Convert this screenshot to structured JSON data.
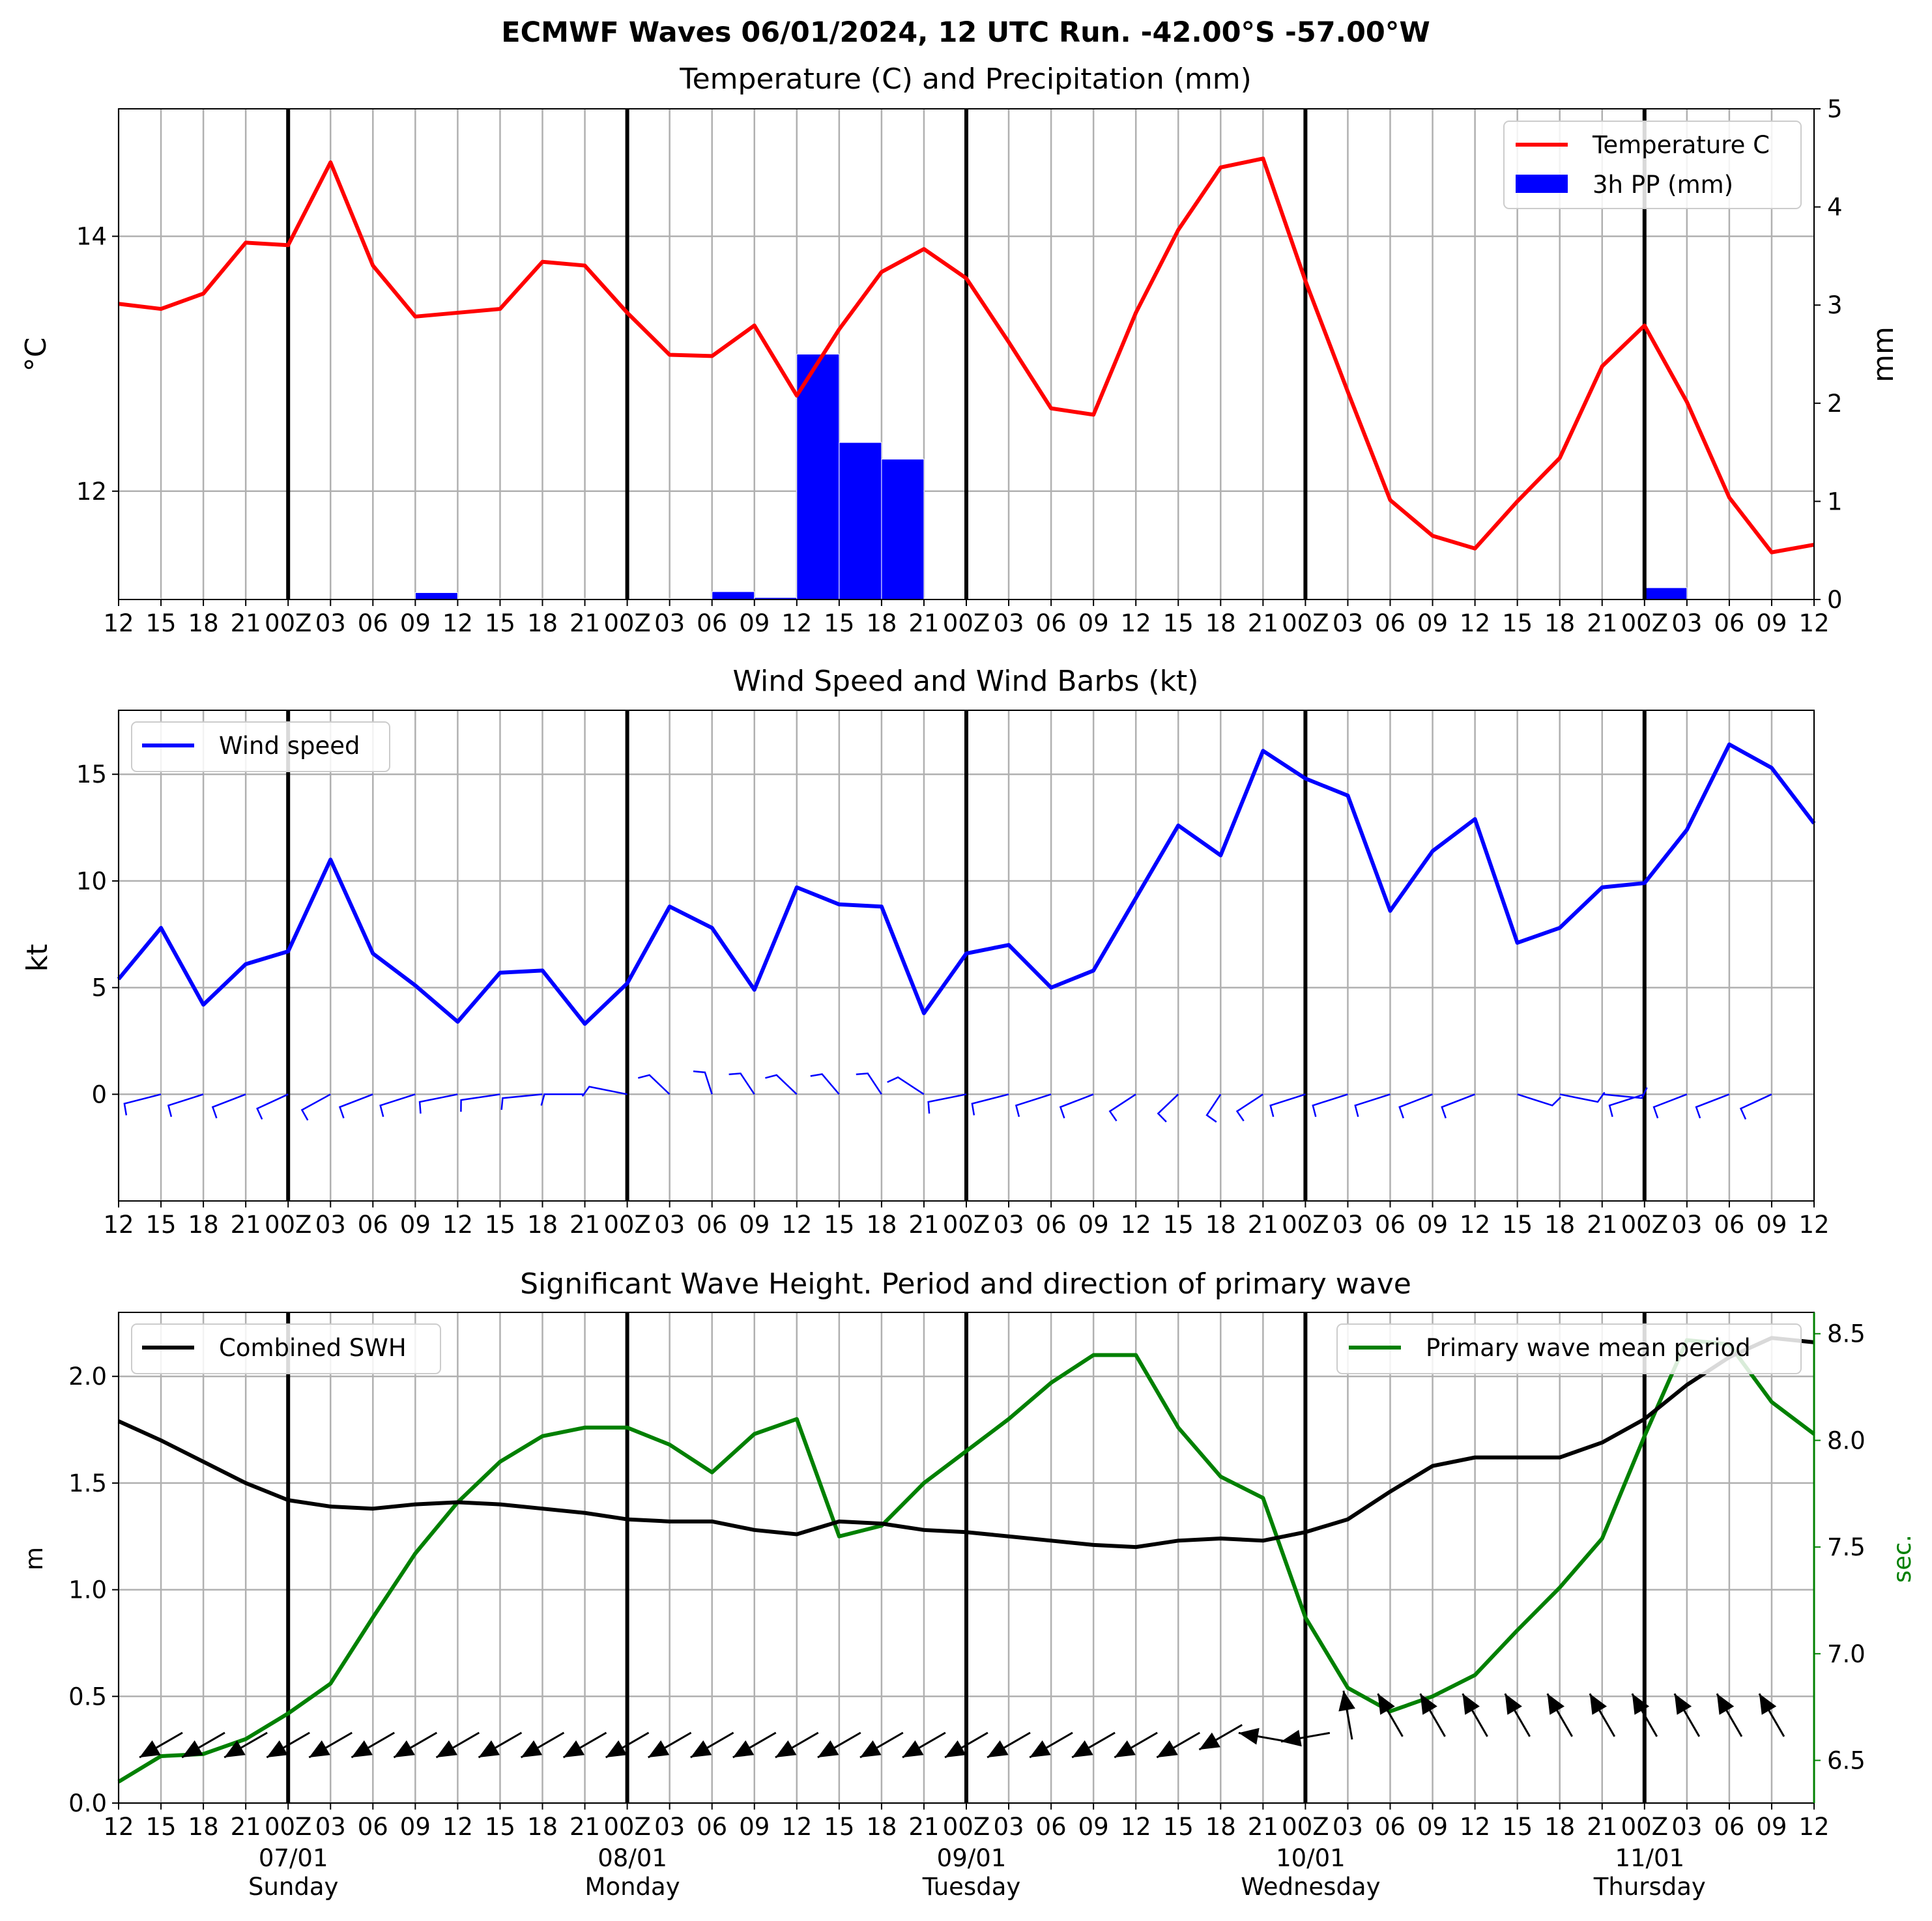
{
  "title": "ECMWF Waves 06/01/2024, 12 UTC Run. -42.00°S -57.00°W",
  "x_tick_labels": [
    "12",
    "15",
    "18",
    "21",
    "00Z",
    "03",
    "06",
    "09",
    "12",
    "15",
    "18",
    "21",
    "00Z",
    "03",
    "06",
    "09",
    "12",
    "15",
    "18",
    "21",
    "00Z",
    "03",
    "06",
    "09",
    "12",
    "15",
    "18",
    "21",
    "00Z",
    "03",
    "06",
    "09",
    "12",
    "15",
    "18",
    "21",
    "00Z",
    "03",
    "06",
    "09",
    "12"
  ],
  "day_labels": [
    {
      "date": "07/01",
      "day": "Sunday"
    },
    {
      "date": "08/01",
      "day": "Monday"
    },
    {
      "date": "09/01",
      "day": "Tuesday"
    },
    {
      "date": "10/01",
      "day": "Wednesday"
    },
    {
      "date": "11/01",
      "day": "Thursday"
    }
  ],
  "colors": {
    "temperature": "#ff0000",
    "precip": "#0000ff",
    "wind": "#0000ff",
    "swh": "#000000",
    "period": "#008000",
    "grid": "#b0b0b0"
  },
  "chart_data": [
    {
      "type": "line",
      "title": "Temperature (C) and Precipitation (mm)",
      "ylabel": "°C",
      "ylabel_right": "mm",
      "ylim": [
        11.15,
        15.0
      ],
      "yticks": [
        12,
        14
      ],
      "ylim_right": [
        0,
        5
      ],
      "yticks_right": [
        0,
        1,
        2,
        3,
        4,
        5
      ],
      "legend_position": "upper right",
      "series": [
        {
          "name": "Temperature C",
          "style": "line",
          "color": "#ff0000",
          "values": [
            13.47,
            13.43,
            13.55,
            13.95,
            13.93,
            14.58,
            13.77,
            13.37,
            13.4,
            13.43,
            13.8,
            13.77,
            13.4,
            13.07,
            13.06,
            13.3,
            12.75,
            13.27,
            13.72,
            13.9,
            13.67,
            13.17,
            12.65,
            12.6,
            13.4,
            14.05,
            14.54,
            14.61,
            13.65,
            12.78,
            11.93,
            11.65,
            11.55,
            11.92,
            12.26,
            12.98,
            13.3,
            12.7,
            11.95,
            11.52,
            11.58
          ]
        },
        {
          "name": "3h PP (mm)",
          "style": "bar",
          "color": "#0000ff",
          "values": [
            0.01,
            0,
            0,
            0,
            0,
            0,
            0,
            0.07,
            0.01,
            0.01,
            0.01,
            0.01,
            0.01,
            0.01,
            0.08,
            0.02,
            2.5,
            1.6,
            1.43,
            0.01,
            0,
            0,
            0,
            0,
            0,
            0,
            0,
            0,
            0,
            0,
            0,
            0,
            0,
            0,
            0,
            0,
            0.12,
            0,
            0,
            0
          ]
        }
      ]
    },
    {
      "type": "line",
      "title": "Wind Speed and Wind Barbs (kt)",
      "ylabel": "kt",
      "ylim": [
        -5,
        18
      ],
      "yticks": [
        0,
        5,
        10,
        15
      ],
      "legend_position": "upper left",
      "series": [
        {
          "name": "Wind speed",
          "color": "#0000ff",
          "values": [
            5.4,
            7.8,
            4.2,
            6.1,
            6.7,
            11.0,
            6.6,
            5.1,
            3.4,
            5.7,
            5.8,
            3.3,
            5.2,
            8.8,
            7.8,
            4.9,
            9.7,
            8.9,
            8.8,
            3.8,
            6.6,
            7.0,
            5.0,
            5.8,
            9.2,
            12.6,
            11.2,
            16.1,
            14.8,
            14.0,
            8.6,
            11.4,
            12.9,
            7.1,
            7.8,
            9.7,
            9.9,
            12.4,
            16.4,
            15.3,
            12.7
          ]
        }
      ]
    },
    {
      "type": "line",
      "title": "Significant Wave Height. Period and direction of primary wave",
      "ylabel": "m",
      "ylabel_right": "sec.",
      "ylim": [
        0.0,
        2.3
      ],
      "yticks": [
        0.0,
        0.5,
        1.0,
        1.5,
        2.0
      ],
      "ylim_right": [
        6.3,
        8.6
      ],
      "yticks_right": [
        6.5,
        7.0,
        7.5,
        8.0,
        8.5
      ],
      "series": [
        {
          "name": "Combined SWH",
          "color": "#000000",
          "legend_position": "upper left",
          "values": [
            1.79,
            1.7,
            1.6,
            1.5,
            1.42,
            1.39,
            1.38,
            1.4,
            1.41,
            1.4,
            1.38,
            1.36,
            1.33,
            1.32,
            1.32,
            1.28,
            1.26,
            1.32,
            1.31,
            1.28,
            1.27,
            1.25,
            1.23,
            1.21,
            1.2,
            1.23,
            1.24,
            1.23,
            1.27,
            1.33,
            1.46,
            1.58,
            1.62,
            1.62,
            1.62,
            1.69,
            1.8,
            1.96,
            2.09,
            2.18,
            2.16
          ]
        },
        {
          "name": "Primary wave mean period",
          "color": "#008000",
          "legend_position": "upper right",
          "values": [
            6.4,
            6.52,
            6.53,
            6.6,
            6.72,
            6.86,
            7.17,
            7.47,
            7.71,
            7.9,
            8.02,
            8.06,
            8.06,
            7.98,
            7.85,
            8.03,
            8.1,
            7.55,
            7.6,
            7.8,
            7.95,
            8.1,
            8.27,
            8.4,
            8.4,
            8.06,
            7.83,
            7.73,
            7.17,
            6.84,
            6.73,
            6.8,
            6.9,
            7.11,
            7.31,
            7.54,
            8.02,
            8.47,
            8.45,
            8.18,
            8.03
          ]
        }
      ]
    }
  ]
}
